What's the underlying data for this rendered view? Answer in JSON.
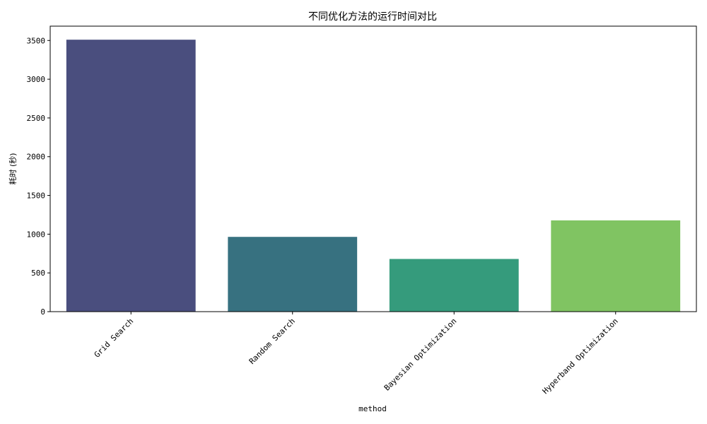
{
  "chart_data": {
    "type": "bar",
    "title": "不同优化方法的运行时间对比",
    "xlabel": "method",
    "ylabel": "耗时 (秒)",
    "categories": [
      "Grid Search",
      "Random Search",
      "Bayesian Optimization",
      "Hyperband Optimization"
    ],
    "values": [
      3510,
      965,
      680,
      1178
    ],
    "colors": [
      "#4a4e7e",
      "#377180",
      "#359b7c",
      "#80c462"
    ],
    "ylim": [
      0,
      3685
    ],
    "yticks": [
      0,
      500,
      1000,
      1500,
      2000,
      2500,
      3000,
      3500
    ],
    "grid": false,
    "legend": "none"
  }
}
